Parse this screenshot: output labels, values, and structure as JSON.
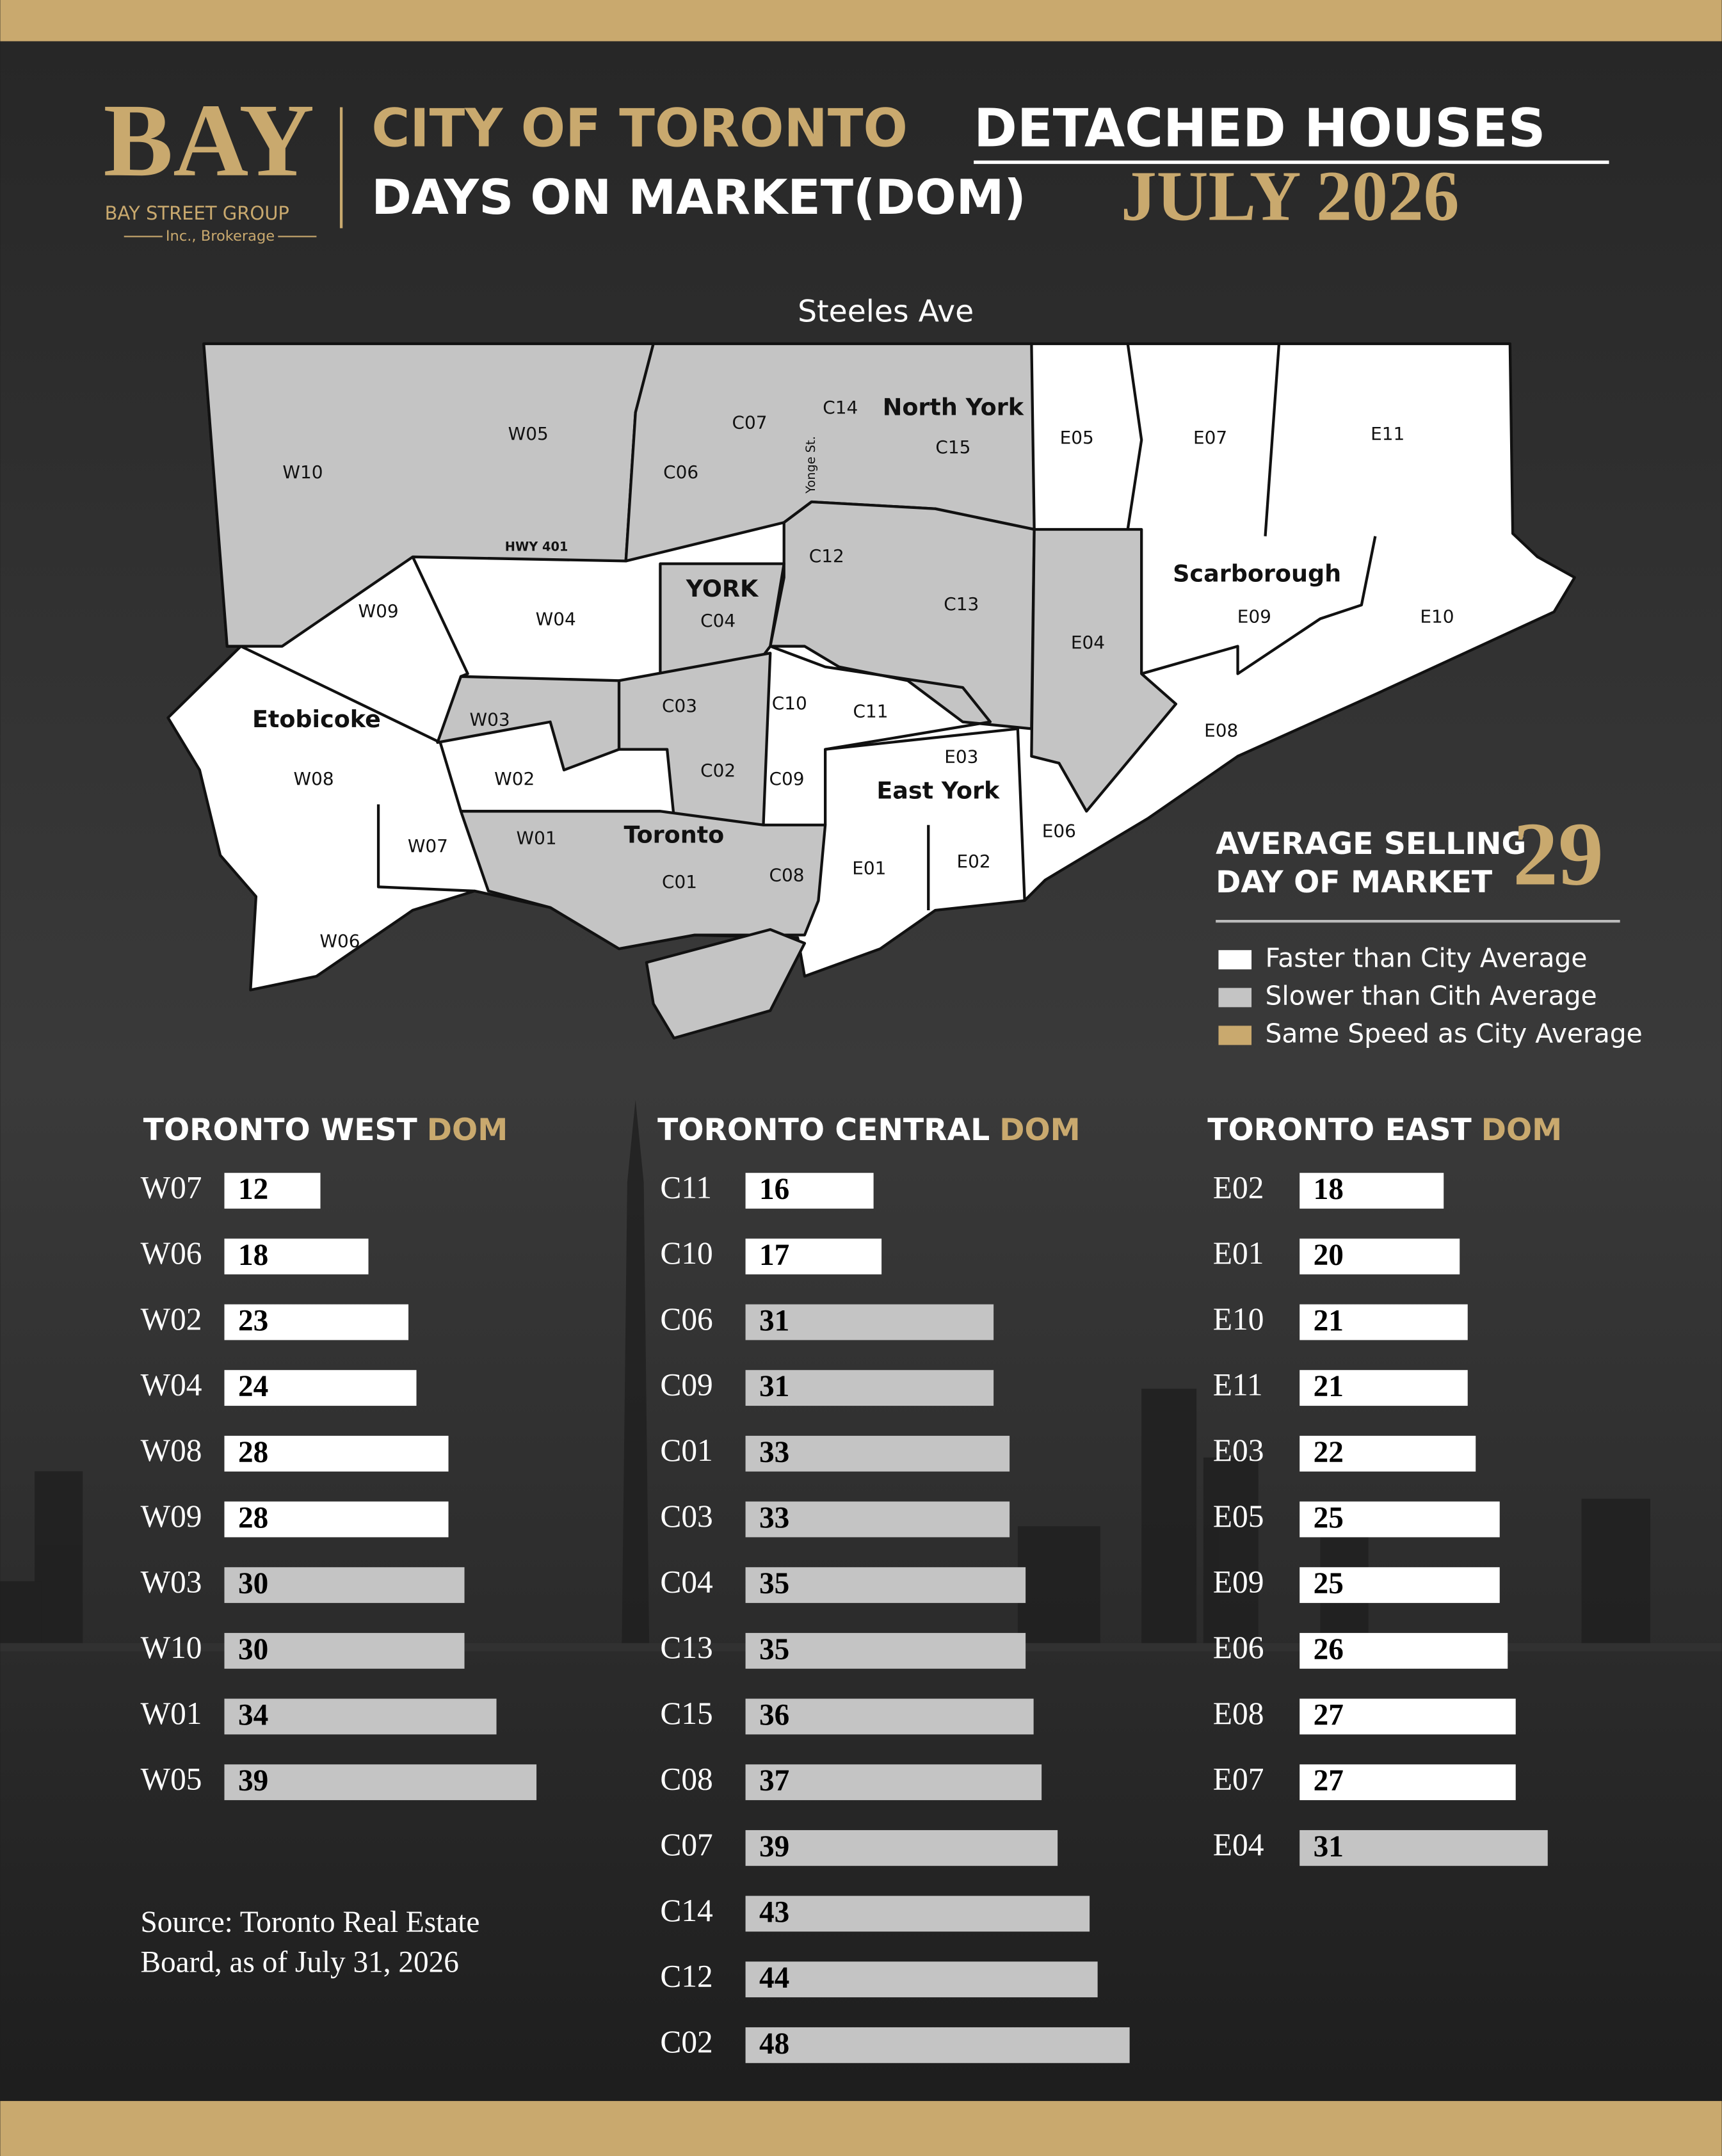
{
  "header": {
    "logo": "BAY",
    "company": "BAY STREET GROUP",
    "company_sub": "Inc., Brokerage",
    "title_part1": "CITY OF TORONTO",
    "title_part2": "DETACHED HOUSES",
    "subtitle_part1": "DAYS ON MARKET(DOM)",
    "subtitle_part2": "JULY 2026"
  },
  "map": {
    "labels": [
      "Steeles Ave",
      "W10",
      "W05",
      "HWY 401",
      "C06",
      "C07",
      "C14",
      "Yonge St.",
      "North York",
      "C15",
      "E05",
      "E07",
      "E11",
      "W09",
      "W04",
      "YORK",
      "C04",
      "C12",
      "C13",
      "E04",
      "Scarborough",
      "E09",
      "E10",
      "Etobicoke",
      "W03",
      "C03",
      "C10",
      "C11",
      "E08",
      "W08",
      "W02",
      "C02",
      "C09",
      "E03",
      "East York",
      "E06",
      "Toronto",
      "W01",
      "W07",
      "C08",
      "E01",
      "E02",
      "C01",
      "W06"
    ]
  },
  "average": {
    "label_line1": "AVERAGE SELLING",
    "label_line2": "DAY OF MARKET",
    "value": 29
  },
  "legend": [
    {
      "label": "Faster than City Average",
      "color": "#ffffff"
    },
    {
      "label": "Slower than Cith Average",
      "color": "#c4c4c4"
    },
    {
      "label": "Same Speed as City Average",
      "color": "#c9a96e"
    }
  ],
  "source": [
    "Source: Toronto Real Estate",
    "Board, as of July 31, 2026"
  ],
  "chart_data": [
    {
      "type": "bar",
      "orientation": "horizontal",
      "title": "TORONTO WEST",
      "title_accent": "DOM",
      "categories": [
        "W07",
        "W06",
        "W02",
        "W04",
        "W08",
        "W09",
        "W03",
        "W10",
        "W01",
        "W05"
      ],
      "values": [
        12,
        18,
        23,
        24,
        28,
        28,
        30,
        30,
        34,
        39
      ]
    },
    {
      "type": "bar",
      "orientation": "horizontal",
      "title": "TORONTO CENTRAL",
      "title_accent": "DOM",
      "categories": [
        "C11",
        "C10",
        "C06",
        "C09",
        "C01",
        "C03",
        "C04",
        "C13",
        "C15",
        "C08",
        "C07",
        "C14",
        "C12",
        "C02"
      ],
      "values": [
        16,
        17,
        31,
        31,
        33,
        33,
        35,
        35,
        36,
        37,
        39,
        43,
        44,
        48
      ]
    },
    {
      "type": "bar",
      "orientation": "horizontal",
      "title": "TORONTO EAST",
      "title_accent": "DOM",
      "categories": [
        "E02",
        "E01",
        "E10",
        "E11",
        "E03",
        "E05",
        "E09",
        "E06",
        "E08",
        "E07",
        "E04"
      ],
      "values": [
        18,
        20,
        21,
        21,
        22,
        25,
        25,
        26,
        27,
        27,
        31
      ]
    }
  ]
}
